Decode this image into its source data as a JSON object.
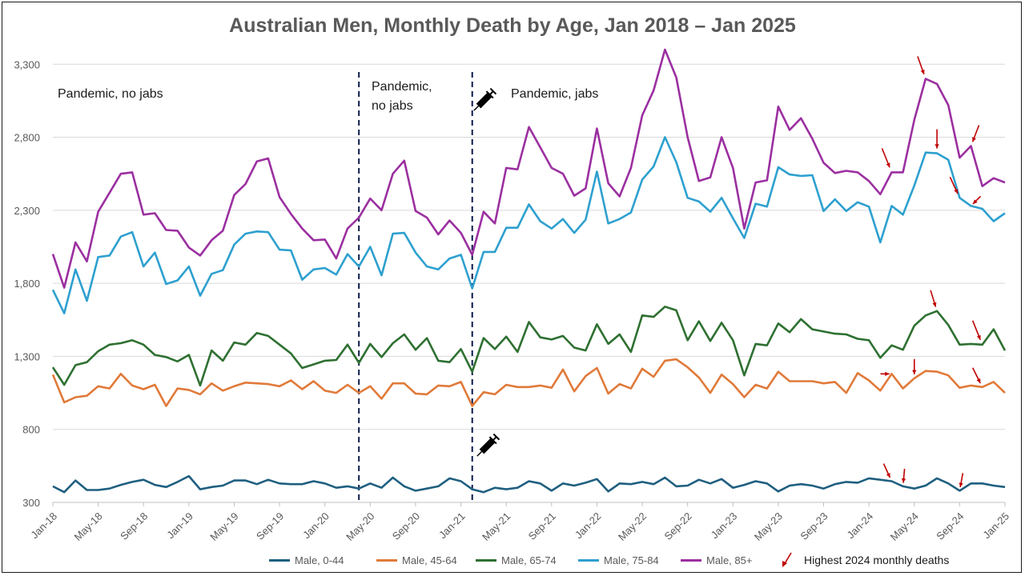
{
  "chart_data": {
    "type": "line",
    "title": "Australian Men, Monthly Death by Age, Jan 2018 – Jan 2025",
    "xlabel": "",
    "ylabel": "",
    "ylim": [
      300,
      3400
    ],
    "yticks": [
      "300",
      "800",
      "1,300",
      "1,800",
      "2,300",
      "2,800",
      "3,300"
    ],
    "ytick_values": [
      300,
      800,
      1300,
      1800,
      2300,
      2800,
      3300
    ],
    "xticks": [
      "Jan-18",
      "May-18",
      "Sep-18",
      "Jan-19",
      "May-19",
      "Sep-19",
      "Jan-20",
      "May-20",
      "Sep-20",
      "Jan-21",
      "May-21",
      "Sep-21",
      "Jan-22",
      "May-22",
      "Sep-22",
      "Jan-23",
      "May-23",
      "Sep-23",
      "Jan-24",
      "May-24",
      "Sep-24",
      "Jan-25"
    ],
    "grid": true,
    "legend_position": "bottom",
    "x_start": "Jan-18",
    "n_months": 85,
    "series": [
      {
        "name": "Male, 0-44",
        "color": "#1f5f80",
        "values": [
          410,
          370,
          450,
          385,
          385,
          395,
          420,
          440,
          455,
          420,
          405,
          440,
          480,
          390,
          405,
          415,
          450,
          450,
          425,
          455,
          430,
          425,
          425,
          445,
          430,
          400,
          410,
          395,
          430,
          400,
          470,
          410,
          380,
          395,
          410,
          465,
          445,
          390,
          370,
          400,
          390,
          400,
          445,
          430,
          380,
          430,
          415,
          435,
          460,
          375,
          430,
          425,
          440,
          425,
          470,
          410,
          415,
          455,
          430,
          460,
          400,
          420,
          445,
          430,
          375,
          415,
          425,
          415,
          395,
          425,
          440,
          435,
          465,
          455,
          445,
          410,
          395,
          415,
          465,
          430,
          380,
          430,
          430,
          415,
          405
        ]
      },
      {
        "name": "Male, 45-64",
        "color": "#e07a3a",
        "values": [
          1175,
          985,
          1020,
          1030,
          1095,
          1080,
          1180,
          1100,
          1075,
          1105,
          960,
          1080,
          1070,
          1040,
          1115,
          1065,
          1095,
          1120,
          1115,
          1110,
          1095,
          1135,
          1075,
          1130,
          1065,
          1050,
          1105,
          1050,
          1095,
          1010,
          1115,
          1115,
          1045,
          1040,
          1100,
          1095,
          1125,
          960,
          1055,
          1040,
          1105,
          1090,
          1090,
          1100,
          1085,
          1210,
          1060,
          1165,
          1220,
          1045,
          1110,
          1080,
          1215,
          1160,
          1270,
          1280,
          1225,
          1155,
          1050,
          1175,
          1110,
          1020,
          1105,
          1080,
          1195,
          1130,
          1130,
          1130,
          1115,
          1125,
          1050,
          1185,
          1135,
          1065,
          1180,
          1080,
          1150,
          1200,
          1195,
          1170,
          1085,
          1100,
          1090,
          1125,
          1050
        ]
      },
      {
        "name": "Male, 65-74",
        "color": "#2e7031",
        "values": [
          1225,
          1105,
          1240,
          1260,
          1335,
          1380,
          1390,
          1410,
          1380,
          1310,
          1295,
          1265,
          1310,
          1100,
          1340,
          1270,
          1395,
          1380,
          1460,
          1440,
          1380,
          1320,
          1220,
          1245,
          1270,
          1275,
          1380,
          1255,
          1385,
          1295,
          1390,
          1450,
          1345,
          1425,
          1270,
          1260,
          1350,
          1195,
          1425,
          1350,
          1435,
          1330,
          1535,
          1430,
          1415,
          1440,
          1360,
          1340,
          1520,
          1385,
          1450,
          1330,
          1580,
          1570,
          1640,
          1615,
          1410,
          1540,
          1405,
          1530,
          1410,
          1170,
          1385,
          1375,
          1525,
          1465,
          1555,
          1485,
          1470,
          1455,
          1450,
          1420,
          1410,
          1290,
          1375,
          1345,
          1510,
          1580,
          1610,
          1515,
          1380,
          1385,
          1380,
          1485,
          1340
        ]
      },
      {
        "name": "Male, 75-84",
        "color": "#2ea0cf",
        "values": [
          1755,
          1595,
          1895,
          1680,
          1980,
          1990,
          2120,
          2150,
          1915,
          2010,
          1795,
          1820,
          1915,
          1715,
          1865,
          1890,
          2065,
          2140,
          2155,
          2150,
          2030,
          2025,
          1825,
          1895,
          1905,
          1860,
          2000,
          1915,
          2050,
          1855,
          2140,
          2145,
          2010,
          1915,
          1895,
          1970,
          1995,
          1765,
          2015,
          2015,
          2180,
          2180,
          2340,
          2225,
          2175,
          2240,
          2145,
          2235,
          2565,
          2210,
          2240,
          2285,
          2510,
          2600,
          2800,
          2630,
          2385,
          2360,
          2290,
          2385,
          2245,
          2110,
          2345,
          2325,
          2595,
          2545,
          2535,
          2540,
          2295,
          2375,
          2295,
          2355,
          2325,
          2080,
          2330,
          2270,
          2470,
          2695,
          2690,
          2645,
          2385,
          2330,
          2310,
          2225,
          2280
        ]
      },
      {
        "name": "Male, 85+",
        "color": "#9b2fa0",
        "values": [
          2000,
          1770,
          2080,
          1950,
          2290,
          2420,
          2550,
          2560,
          2270,
          2280,
          2165,
          2160,
          2045,
          1990,
          2095,
          2160,
          2405,
          2480,
          2635,
          2655,
          2390,
          2275,
          2175,
          2095,
          2100,
          1970,
          2175,
          2250,
          2380,
          2300,
          2550,
          2640,
          2295,
          2250,
          2135,
          2230,
          2145,
          1995,
          2290,
          2210,
          2590,
          2580,
          2870,
          2730,
          2590,
          2550,
          2400,
          2450,
          2860,
          2485,
          2395,
          2590,
          2950,
          3120,
          3400,
          3210,
          2800,
          2500,
          2525,
          2800,
          2590,
          2175,
          2490,
          2505,
          3010,
          2850,
          2930,
          2790,
          2625,
          2555,
          2570,
          2560,
          2500,
          2410,
          2560,
          2560,
          2920,
          3200,
          3165,
          3020,
          2660,
          2740,
          2465,
          2520,
          2490
        ]
      }
    ],
    "annotations": [
      {
        "text": "Pandemic, no jabs"
      },
      {
        "text": "Pandemic,"
      },
      {
        "text": "no jabs"
      },
      {
        "text": "Pandemic, jabs"
      }
    ],
    "vertical_markers": [
      {
        "month_index": 27,
        "label": "Apr-20"
      },
      {
        "month_index": 37,
        "label": "Feb-21"
      }
    ],
    "highlight_arrows": [
      {
        "series": "Male, 85+",
        "month_index": 77
      },
      {
        "series": "Male, 85+",
        "month_index": 74
      },
      {
        "series": "Male, 85+",
        "month_index": 81
      },
      {
        "series": "Male, 75-84",
        "month_index": 78
      },
      {
        "series": "Male, 75-84",
        "month_index": 80
      },
      {
        "series": "Male, 75-84",
        "month_index": 81
      },
      {
        "series": "Male, 65-74",
        "month_index": 78
      },
      {
        "series": "Male, 65-74",
        "month_index": 82
      },
      {
        "series": "Male, 45-64",
        "month_index": 74
      },
      {
        "series": "Male, 45-64",
        "month_index": 76
      },
      {
        "series": "Male, 45-64",
        "month_index": 82
      },
      {
        "series": "Male, 0-44",
        "month_index": 74
      },
      {
        "series": "Male, 0-44",
        "month_index": 75
      },
      {
        "series": "Male, 0-44",
        "month_index": 80
      }
    ],
    "arrow_color": "#c00000",
    "legend_note": "Highest 2024 monthly deaths",
    "icons": [
      "syringe-icon",
      "syringe-icon"
    ]
  }
}
